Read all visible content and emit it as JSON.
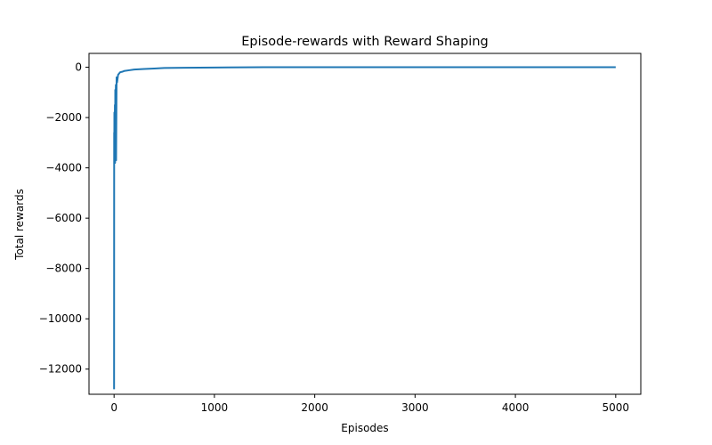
{
  "chart_data": {
    "type": "line",
    "title": "Episode-rewards with Reward Shaping",
    "xlabel": "Episodes",
    "ylabel": "Total rewards",
    "xlim": [
      -250,
      5250
    ],
    "ylim": [
      -13000,
      550
    ],
    "xticks": [
      0,
      1000,
      2000,
      3000,
      4000,
      5000
    ],
    "xtick_labels": [
      "0",
      "1000",
      "2000",
      "3000",
      "4000",
      "5000"
    ],
    "yticks": [
      0,
      -2000,
      -4000,
      -6000,
      -8000,
      -10000,
      -12000
    ],
    "ytick_labels": [
      "0",
      "−2000",
      "−4000",
      "−6000",
      "−8000",
      "−10000",
      "−12000"
    ],
    "grid": false,
    "series": [
      {
        "color": "#1f77b4",
        "x": [
          0,
          1,
          2,
          3,
          4,
          5,
          6,
          8,
          10,
          12,
          15,
          18,
          20,
          25,
          30,
          40,
          50,
          60,
          80,
          100,
          150,
          200,
          300,
          400,
          500,
          700,
          1000,
          1500,
          2000,
          3000,
          4000,
          5000
        ],
        "y": [
          -12800,
          -2600,
          -3700,
          -1800,
          -3100,
          -2200,
          -3500,
          -1500,
          -3800,
          -900,
          -1300,
          -700,
          -3700,
          -400,
          -600,
          -300,
          -250,
          -200,
          -180,
          -150,
          -120,
          -90,
          -70,
          -50,
          -30,
          -20,
          -10,
          0,
          0,
          0,
          0,
          0
        ]
      }
    ]
  }
}
